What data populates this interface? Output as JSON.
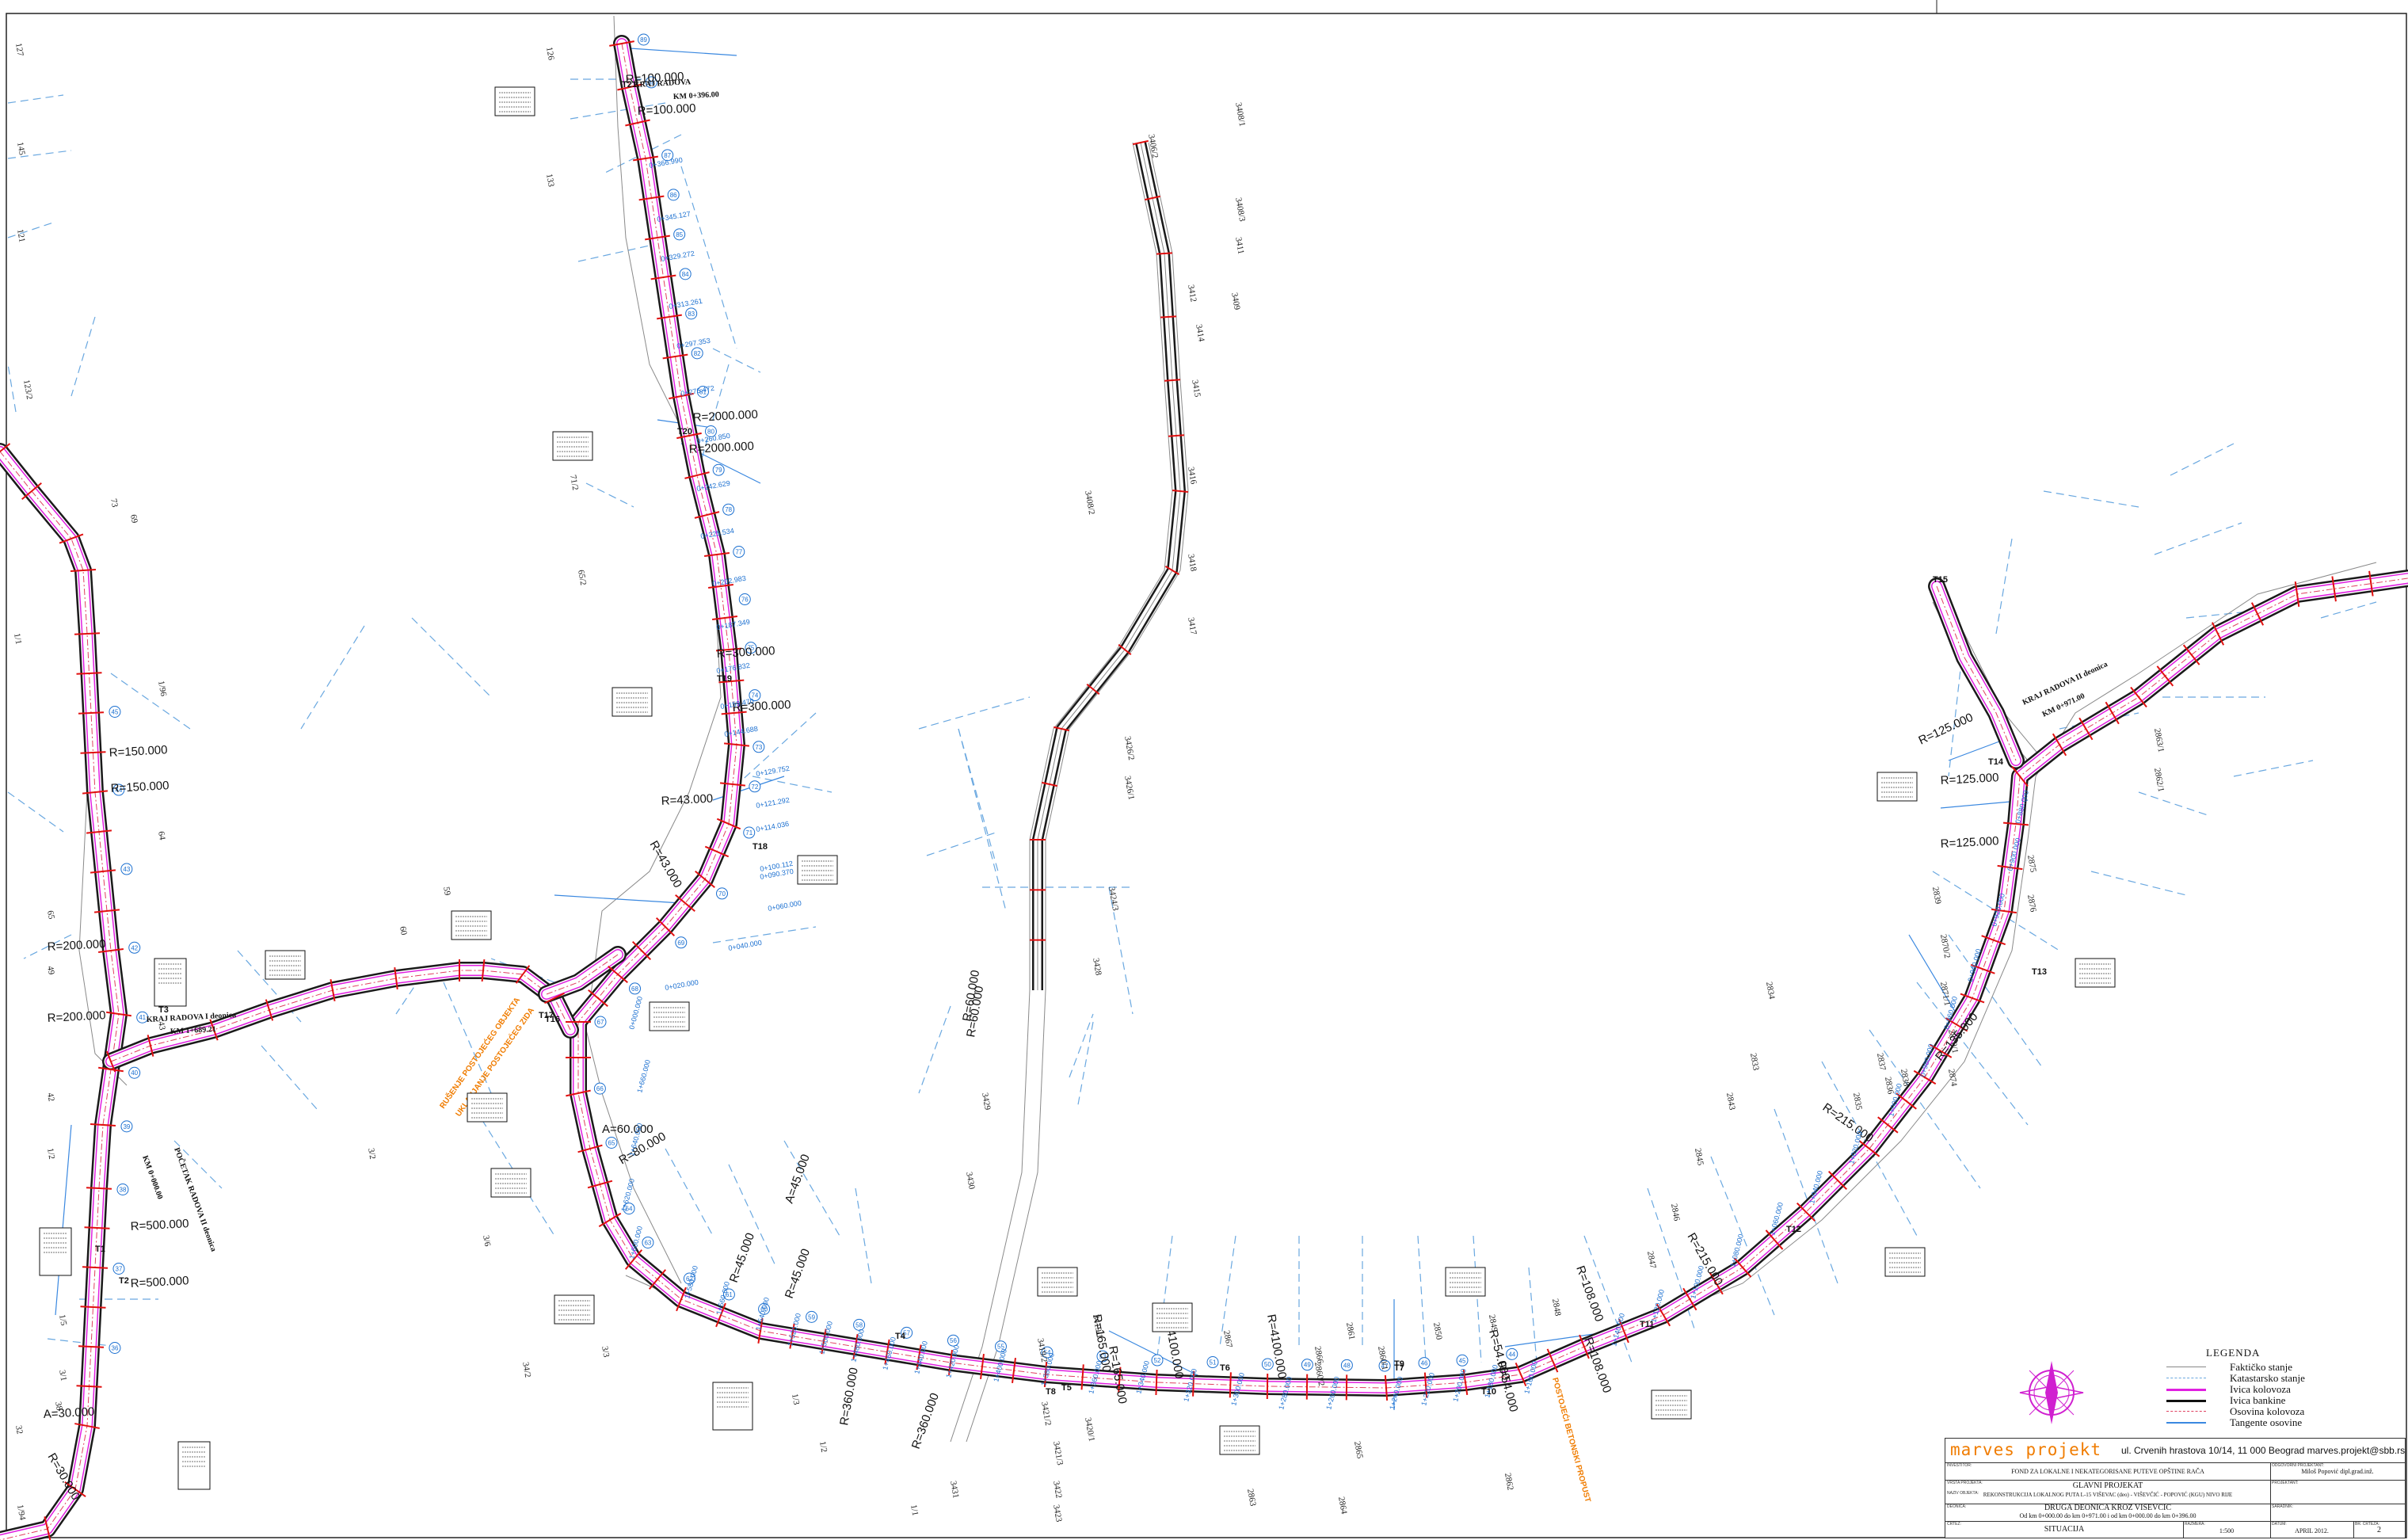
{
  "radius_labels": [
    "R=100.000",
    "R=100.000",
    "R=2000.000",
    "R=2000.000",
    "R=300.000",
    "R=300.000",
    "R=43.000",
    "R=43.000",
    "R=150.000",
    "R=150.000",
    "R=200.000",
    "R=200.000",
    "R=500.000",
    "R=500.000",
    "A=30.000",
    "R=30.000",
    "R=125.000",
    "R=125.000",
    "R=125.000",
    "R=215.000",
    "R=215.000",
    "R=135.000",
    "R=108.000",
    "R=108.000",
    "R=54.000",
    "R=54.000",
    "R=45.000",
    "R=45.000",
    "R=60.000",
    "R=60.000",
    "A=60.000",
    "R=165.000",
    "R=165.000",
    "R=4100.000",
    "R=4100.000",
    "R=360.000",
    "R=360.000",
    "R=80.000",
    "A=45.000"
  ],
  "node_labels": [
    "T21",
    "T20",
    "T19",
    "T18",
    "T17",
    "T16",
    "T3",
    "T2",
    "T4",
    "T5",
    "T6",
    "T7",
    "T8",
    "T9",
    "T10",
    "T11",
    "T12",
    "T13",
    "T14",
    "T15",
    "T1"
  ],
  "notes": {
    "end_works_2": "KRAJ RADOVA",
    "end_works_2_km": "KM 0+396.00",
    "end_works_1": "KRAJ RADOVA I deonica",
    "end_works_1_km": "KM 1+689.21",
    "start_works_2": "POČETAK RADOVA II deonica",
    "start_works_2_km": "KM 0+000.00",
    "end_works_east": "KRAJ RADOVA II deonica",
    "end_works_east_km": "KM 0+971.00"
  },
  "parcel_labels": [
    "127",
    "145",
    "121",
    "123/2",
    "73",
    "69",
    "1/96",
    "1/1",
    "64",
    "65",
    "49",
    "43",
    "42",
    "1/2",
    "4/3",
    "1/5",
    "3/1",
    "38",
    "32",
    "1/94",
    "59",
    "60",
    "65/2",
    "71/2",
    "126",
    "133",
    "3/2",
    "3/6",
    "34/2",
    "3/3",
    "1/3",
    "1/2",
    "1/1",
    "3431",
    "3430",
    "3429",
    "3428",
    "3424/3",
    "3426/1",
    "3426/2",
    "3417",
    "3418",
    "3416",
    "3415",
    "3414",
    "3412",
    "3411",
    "3409",
    "3408/1",
    "3406/2",
    "3408/3",
    "3408/2",
    "3419/1",
    "3419/2",
    "3421/2",
    "3421/3",
    "3422",
    "3423",
    "3420/1",
    "2867",
    "2868",
    "2863",
    "2864",
    "2865",
    "2866",
    "2861",
    "2862",
    "2860/2",
    "2860/1",
    "2850",
    "2849",
    "2848",
    "2847",
    "2846",
    "2845",
    "2843",
    "2833",
    "2834",
    "2835",
    "2836",
    "2837",
    "2838",
    "2839",
    "2870/2",
    "2871/1",
    "2870/1",
    "2874",
    "2875",
    "2876",
    "2862/1",
    "2863/1",
    "2855"
  ],
  "station_labels": [
    "0+366.990",
    "0+345.127",
    "0+329.272",
    "0+313.261",
    "0+297.353",
    "0+276.472",
    "0+260.850",
    "0+242.629",
    "0+225.534",
    "0+202.983",
    "0+187.349",
    "0+176.832",
    "0+159.470",
    "0+144.688",
    "0+129.752",
    "0+121.292",
    "0+114.036",
    "0+100.112",
    "0+090.370",
    "0+060.000",
    "0+040.000",
    "0+020.000",
    "0+000.000",
    "1+660.000",
    "1+640.000",
    "1+620.000",
    "1+600.000",
    "1+580.000",
    "1+560.000",
    "1+540.000",
    "1+520.000",
    "1+500.000",
    "1+480.000",
    "1+460.000",
    "1+440.000",
    "1+420.000",
    "1+400.000",
    "1+380.000",
    "1+360.000",
    "1+340.000",
    "1+320.000",
    "1+300.000",
    "1+280.000",
    "1+260.000",
    "1+240.000",
    "1+220.000",
    "1+200.000",
    "1+180.000",
    "1+160.000",
    "1+140.000",
    "1+120.000",
    "1+100.000",
    "1+080.000",
    "1+060.000",
    "1+040.000",
    "1+020.000",
    "1+000.000",
    "0+980.000",
    "0+960.000",
    "0+940.000",
    "0+920.000",
    "0+900.000",
    "0+880.000"
  ],
  "orange_notes": [
    "RUŠENJE POSTOJEĆEG OBJEKTA",
    "UKLANJANJE POSTOJEĆEG ZIDA",
    "POSTOJEĆI BETONSKI PROPUST"
  ],
  "legend": {
    "title": "LEGENDA",
    "items": [
      {
        "label": "Faktičko stanje",
        "color": "#888888",
        "style": "solid"
      },
      {
        "label": "Katastarsko stanje",
        "color": "#6aa8e0",
        "style": "dashed"
      },
      {
        "label": "Ivica kolovoza",
        "color": "#e020e0",
        "style": "solid"
      },
      {
        "label": "Ivica bankine",
        "color": "#111111",
        "style": "solid"
      },
      {
        "label": "Osovina kolovoza",
        "color": "#e04060",
        "style": "dashdot"
      },
      {
        "label": "Tangente osovine",
        "color": "#3a88e0",
        "style": "solid"
      }
    ]
  },
  "colors": {
    "road_edge": "#e020e0",
    "shoulder": "#1a1a1a",
    "axis": "#e04060",
    "cadastre": "#6aa8e0",
    "tangent": "#3a88e0",
    "existing": "#888888",
    "cross_sections": "#e01010",
    "brand": "#f07c00",
    "north_arrow": "#d020d0"
  },
  "titleblock": {
    "brand": "marves projekt",
    "address": "ul. Crvenih hrastova 10/14, 11 000 Beograd   marves.projekt@sbb.rs",
    "investor_key": "INVESTITOR:",
    "investor": "FOND ZA LOKALNE I NEKATEGORISANE PUTEVE OPŠTINE RAČA",
    "object_key": "NAZIV OBJEKTA:",
    "object": "REKONSTRUKCIJA LOKALNOG PUTA L-15 VIŠEVAC (deo) - VIŠEVČIĆ - POPOVIĆ (KGU) NIVO RIJE",
    "project_key": "VRSTA PROJEKTA:",
    "project": "GLAVNI PROJEKAT",
    "section_key": "DEONICA:",
    "section": "DRUGA DEONICA KROZ VIŠEVČIĆ",
    "section_km": "Od km 0+000.00 do km 0+971.00 i od km 0+000.00 do km 0+396.00",
    "drawing_key": "CRTEŽ:",
    "drawing": "SITUACIJA",
    "designer_key": "ODGOVORNI PROJEKTANT:",
    "designer": "Miloš Popović dipl.grad.inž.",
    "collab_key": "PROJEKTANT:",
    "collab": "",
    "control_key": "SARADNIK:",
    "control": "",
    "scale_key": "RAZMERA:",
    "scale": "1:500",
    "date_key": "DATUM:",
    "date": "APRIL 2012.",
    "sheet_key": "BR. CRTEŽA:",
    "sheet": "2"
  }
}
